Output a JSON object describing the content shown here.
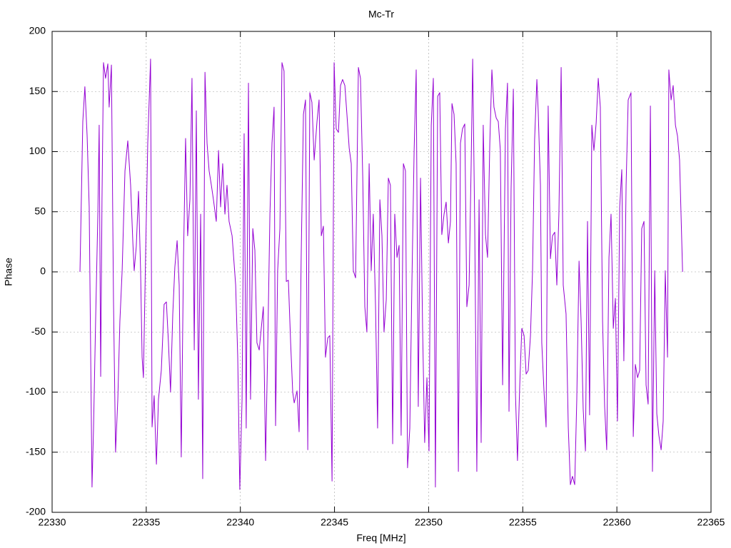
{
  "chart_data": {
    "type": "line",
    "title": "Mc-Tr",
    "x_label": "Freq [MHz]",
    "y_label": "Phase",
    "color": "#9400d3",
    "grid": true,
    "xlim": [
      22330,
      22365
    ],
    "xticks": [
      22330,
      22335,
      22340,
      22345,
      22350,
      22355,
      22360,
      22365
    ],
    "ylim": [
      -200,
      200
    ],
    "yticks": [
      -200,
      -150,
      -100,
      -50,
      0,
      50,
      100,
      150,
      200
    ],
    "x": [
      22331.48,
      22331.63,
      22331.74,
      22331.86,
      22331.97,
      22332.05,
      22332.12,
      22332.2,
      22332.31,
      22332.43,
      22332.5,
      22332.58,
      22332.65,
      22332.73,
      22332.84,
      22332.96,
      22333.03,
      22333.15,
      22333.26,
      22333.37,
      22333.49,
      22333.6,
      22333.72,
      22333.87,
      22334.02,
      22334.17,
      22334.29,
      22334.36,
      22334.47,
      22334.59,
      22334.7,
      22334.78,
      22334.85,
      22334.97,
      22335.08,
      22335.23,
      22335.31,
      22335.42,
      22335.54,
      22335.65,
      22335.8,
      22335.95,
      22336.07,
      22336.18,
      22336.29,
      22336.41,
      22336.52,
      22336.64,
      22336.75,
      22336.86,
      22336.98,
      22337.09,
      22337.2,
      22337.32,
      22337.43,
      22337.55,
      22337.66,
      22337.77,
      22337.89,
      22338.0,
      22338.12,
      22338.23,
      22338.34,
      22338.46,
      22338.57,
      22338.72,
      22338.84,
      22338.95,
      22339.06,
      22339.18,
      22339.29,
      22339.4,
      22339.56,
      22339.75,
      22339.86,
      22339.97,
      22340.09,
      22340.2,
      22340.31,
      22340.43,
      22340.54,
      22340.66,
      22340.77,
      22340.88,
      22341.0,
      22341.11,
      22341.22,
      22341.34,
      22341.45,
      22341.57,
      22341.68,
      22341.79,
      22341.87,
      22341.98,
      22342.1,
      22342.21,
      22342.32,
      22342.44,
      22342.55,
      22342.67,
      22342.78,
      22342.86,
      22343.01,
      22343.12,
      22343.23,
      22343.35,
      22343.46,
      22343.58,
      22343.69,
      22343.8,
      22343.92,
      22344.07,
      22344.18,
      22344.3,
      22344.41,
      22344.52,
      22344.64,
      22344.75,
      22344.87,
      22344.98,
      22345.09,
      22345.21,
      22345.32,
      22345.43,
      22345.55,
      22345.66,
      22345.78,
      22345.89,
      22346.0,
      22346.12,
      22346.27,
      22346.38,
      22346.5,
      22346.61,
      22346.72,
      22346.84,
      22346.95,
      22347.06,
      22347.18,
      22347.29,
      22347.41,
      22347.52,
      22347.63,
      22347.75,
      22347.86,
      22347.97,
      22348.09,
      22348.2,
      22348.32,
      22348.43,
      22348.54,
      22348.66,
      22348.77,
      22348.88,
      22349.0,
      22349.11,
      22349.23,
      22349.34,
      22349.45,
      22349.57,
      22349.68,
      22349.79,
      22349.91,
      22350.02,
      22350.14,
      22350.25,
      22350.36,
      22350.48,
      22350.59,
      22350.7,
      22350.82,
      22350.93,
      22351.05,
      22351.16,
      22351.24,
      22351.35,
      22351.46,
      22351.58,
      22351.69,
      22351.8,
      22351.92,
      22352.03,
      22352.15,
      22352.26,
      22352.34,
      22352.45,
      22352.56,
      22352.68,
      22352.79,
      22352.9,
      22353.02,
      22353.13,
      22353.25,
      22353.36,
      22353.47,
      22353.59,
      22353.7,
      22353.81,
      22353.93,
      22354.08,
      22354.19,
      22354.27,
      22354.38,
      22354.5,
      22354.61,
      22354.72,
      22354.84,
      22354.95,
      22355.07,
      22355.18,
      22355.29,
      22355.41,
      22355.52,
      22355.63,
      22355.75,
      22355.82,
      22355.94,
      22356.01,
      22356.13,
      22356.24,
      22356.35,
      22356.47,
      22356.58,
      22356.7,
      22356.81,
      22356.92,
      22357.04,
      22357.15,
      22357.3,
      22357.42,
      22357.53,
      22357.64,
      22357.76,
      22357.87,
      22357.99,
      22358.1,
      22358.21,
      22358.33,
      22358.44,
      22358.55,
      22358.67,
      22358.78,
      22358.9,
      22359.01,
      22359.12,
      22359.24,
      22359.35,
      22359.46,
      22359.58,
      22359.69,
      22359.81,
      22359.92,
      22360.03,
      22360.15,
      22360.26,
      22360.37,
      22360.49,
      22360.6,
      22360.75,
      22360.87,
      22360.98,
      22361.1,
      22361.21,
      22361.32,
      22361.44,
      22361.55,
      22361.66,
      22361.78,
      22361.89,
      22362.01,
      22362.12,
      22362.23,
      22362.35,
      22362.46,
      22362.57,
      22362.69,
      22362.76,
      22362.88,
      22362.99,
      22363.11,
      22363.22,
      22363.33,
      22363.49
    ],
    "values": [
      0,
      125,
      154,
      113,
      54,
      -71,
      -179,
      -130,
      -41,
      48,
      122,
      -87,
      60,
      174,
      161,
      173,
      137,
      172,
      -23,
      -150,
      -106,
      -41,
      1,
      84,
      109,
      72,
      24,
      1,
      21,
      67,
      1,
      -71,
      -88,
      18,
      107,
      177,
      -129,
      -103,
      -160,
      -106,
      -82,
      -27,
      -25,
      -59,
      -100,
      -35,
      4,
      26,
      -11,
      -154,
      12,
      111,
      30,
      60,
      161,
      -65,
      134,
      -106,
      48,
      -172,
      166,
      107,
      84,
      72,
      60,
      42,
      101,
      54,
      90,
      48,
      72,
      42,
      30,
      -11,
      -71,
      -181,
      -106,
      115,
      -130,
      157,
      -106,
      36,
      18,
      -59,
      -65,
      -47,
      -29,
      -157,
      -65,
      48,
      107,
      137,
      -128,
      1,
      36,
      174,
      167,
      -8,
      -7,
      -59,
      -100,
      -109,
      -99,
      -133,
      12,
      131,
      143,
      -148,
      149,
      141,
      93,
      125,
      143,
      30,
      38,
      -71,
      -55,
      -53,
      -174,
      174,
      119,
      116,
      155,
      160,
      155,
      131,
      103,
      90,
      1,
      -5,
      170,
      161,
      79,
      -29,
      -50,
      90,
      1,
      48,
      -29,
      -130,
      60,
      30,
      -50,
      -23,
      78,
      72,
      -143,
      48,
      12,
      22,
      -136,
      90,
      84,
      -163,
      -130,
      -11,
      101,
      168,
      -112,
      78,
      -47,
      -142,
      -88,
      -149,
      122,
      161,
      -179,
      146,
      149,
      31,
      48,
      58,
      24,
      42,
      140,
      131,
      90,
      -166,
      107,
      119,
      123,
      -29,
      -11,
      90,
      177,
      36,
      -166,
      60,
      -142,
      122,
      31,
      12,
      107,
      168,
      137,
      128,
      125,
      101,
      -94,
      119,
      157,
      -116,
      69,
      152,
      -100,
      -157,
      -94,
      -47,
      -53,
      -85,
      -82,
      -53,
      1,
      110,
      160,
      134,
      72,
      -59,
      -100,
      -129,
      138,
      11,
      30,
      33,
      -11,
      48,
      170,
      -11,
      -35,
      -130,
      -177,
      -170,
      -177,
      -106,
      9,
      -41,
      -114,
      -149,
      42,
      -119,
      122,
      101,
      124,
      161,
      137,
      -41,
      -112,
      -148,
      12,
      48,
      -47,
      -22,
      -124,
      54,
      85,
      -74,
      72,
      143,
      149,
      -137,
      -77,
      -88,
      -82,
      36,
      42,
      -94,
      -110,
      138,
      -166,
      1,
      -118,
      -136,
      -148,
      -124,
      1,
      -71,
      168,
      143,
      155,
      122,
      113,
      93,
      0
    ]
  }
}
